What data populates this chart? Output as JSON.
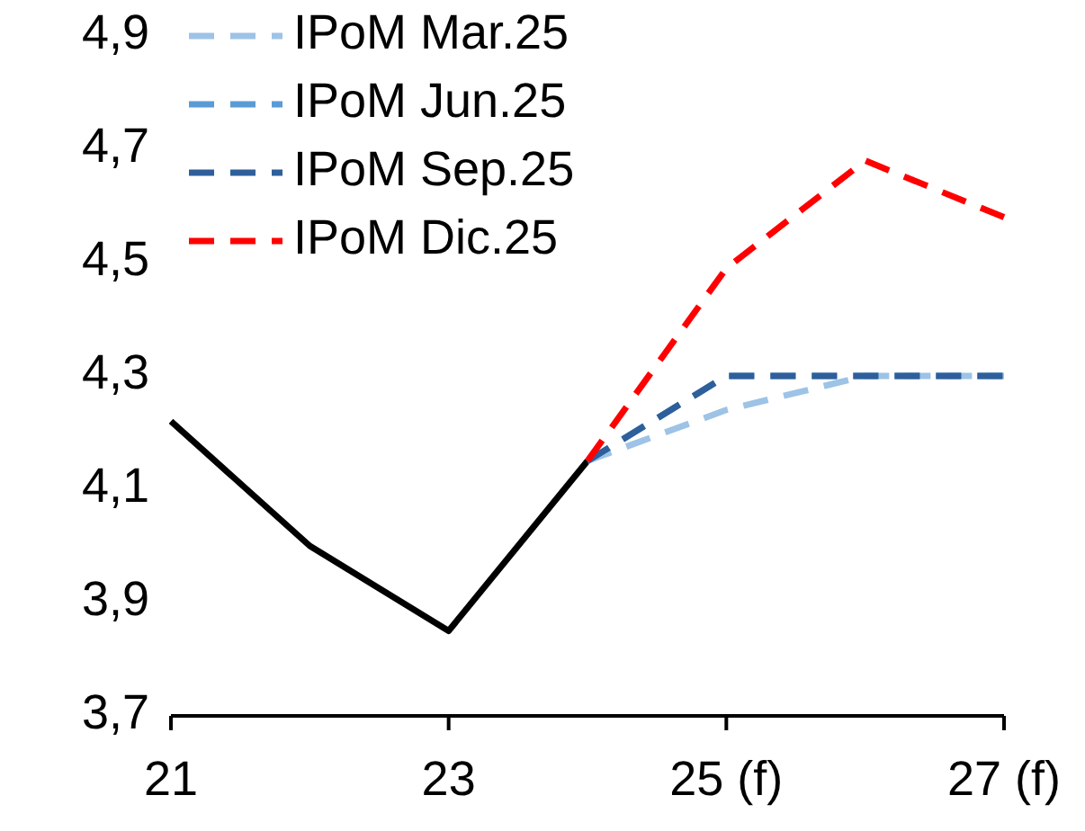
{
  "chart_data": {
    "type": "line",
    "categories": [
      "21",
      null,
      "23",
      null,
      "25 (f)",
      null,
      "27 (f)"
    ],
    "series": [
      {
        "color": "#000000",
        "line_style": "solid",
        "values": [
          4.22,
          4.0,
          3.85,
          4.15,
          null,
          null,
          null
        ]
      },
      {
        "name": "IPoM Mar.25",
        "color": "#9dc3e6",
        "line_style": "dashed",
        "values": [
          null,
          null,
          null,
          4.15,
          4.24,
          4.3,
          4.3
        ]
      },
      {
        "name": "IPoM Jun.25",
        "color": "#5b9bd5",
        "line_style": "dashed",
        "values": [
          null,
          null,
          null,
          4.15,
          4.3,
          4.3,
          4.3
        ]
      },
      {
        "name": "IPoM Sep.25",
        "color": "#2e5f9a",
        "line_style": "dashed",
        "values": [
          null,
          null,
          null,
          4.15,
          4.3,
          4.3,
          4.3
        ]
      },
      {
        "name": "IPoM Dic.25",
        "color": "#ff0000",
        "line_style": "dashed",
        "values": [
          null,
          null,
          null,
          4.15,
          4.49,
          4.68,
          4.58
        ]
      }
    ],
    "ylim": [
      3.7,
      4.9
    ],
    "yticks": [
      {
        "value": 3.7,
        "label": "3,7"
      },
      {
        "value": 3.9,
        "label": "3,9"
      },
      {
        "value": 4.1,
        "label": "4,1"
      },
      {
        "value": 4.3,
        "label": "4,3"
      },
      {
        "value": 4.5,
        "label": "4,5"
      },
      {
        "value": 4.7,
        "label": "4,7"
      },
      {
        "value": 4.9,
        "label": "4,9"
      }
    ],
    "legend": "top left",
    "grid": false
  }
}
